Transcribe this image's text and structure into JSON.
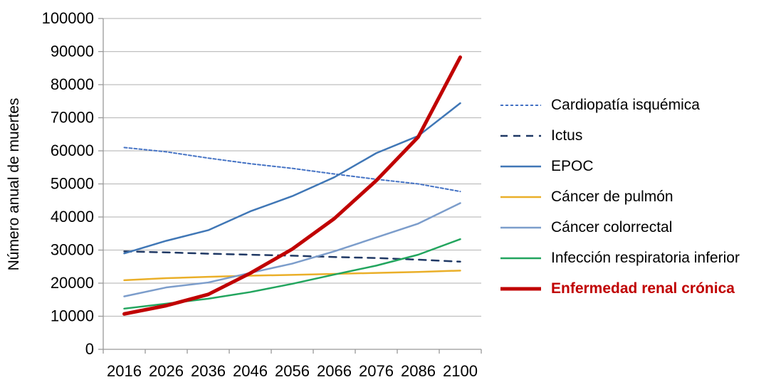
{
  "chart_data": {
    "type": "line",
    "title": "",
    "xlabel": "",
    "ylabel": "Número anual de muertes",
    "ylim": [
      0,
      100000
    ],
    "ytick_step": 10000,
    "grid": "horizontal",
    "legend_position": "right",
    "axis_color": "#999999",
    "grid_color": "#bfbfbf",
    "text_color": "#000000",
    "categories": [
      "2016",
      "2026",
      "2036",
      "2046",
      "2056",
      "2066",
      "2076",
      "2086",
      "2100"
    ],
    "series": [
      {
        "name": "Cardiopatía isquémica",
        "color": "#4472c4",
        "style": "dashed-fine",
        "width": 2,
        "bold_label": false,
        "values": [
          61000,
          59700,
          57800,
          56100,
          54700,
          53000,
          51400,
          50000,
          47700
        ]
      },
      {
        "name": "Ictus",
        "color": "#1f3864",
        "style": "dashed",
        "width": 2.5,
        "bold_label": false,
        "values": [
          29600,
          29300,
          28900,
          28600,
          28300,
          27900,
          27600,
          27100,
          26500
        ]
      },
      {
        "name": "EPOC",
        "color": "#4077b6",
        "style": "solid",
        "width": 2.5,
        "bold_label": false,
        "values": [
          29000,
          32800,
          36000,
          41700,
          46300,
          52000,
          59300,
          64500,
          74400
        ]
      },
      {
        "name": "Cáncer de pulmón",
        "color": "#eaaf29",
        "style": "solid",
        "width": 2.5,
        "bold_label": false,
        "values": [
          20900,
          21500,
          21900,
          22250,
          22500,
          22800,
          23100,
          23400,
          23800
        ]
      },
      {
        "name": "Cáncer colorrectal",
        "color": "#7c9dcb",
        "style": "solid",
        "width": 2.5,
        "bold_label": false,
        "values": [
          16000,
          18700,
          20200,
          23100,
          25900,
          29600,
          33800,
          38000,
          44200
        ]
      },
      {
        "name": "Infección respiratoria inferior",
        "color": "#22a55e",
        "style": "solid",
        "width": 2.5,
        "bold_label": false,
        "values": [
          12300,
          13800,
          15300,
          17300,
          19800,
          22600,
          25300,
          28600,
          33300
        ]
      },
      {
        "name": "Enfermedad renal crónica",
        "color": "#c00000",
        "style": "solid",
        "width": 5,
        "bold_label": true,
        "values": [
          10700,
          13200,
          16600,
          23000,
          30300,
          39500,
          51000,
          64200,
          88300
        ]
      }
    ]
  }
}
